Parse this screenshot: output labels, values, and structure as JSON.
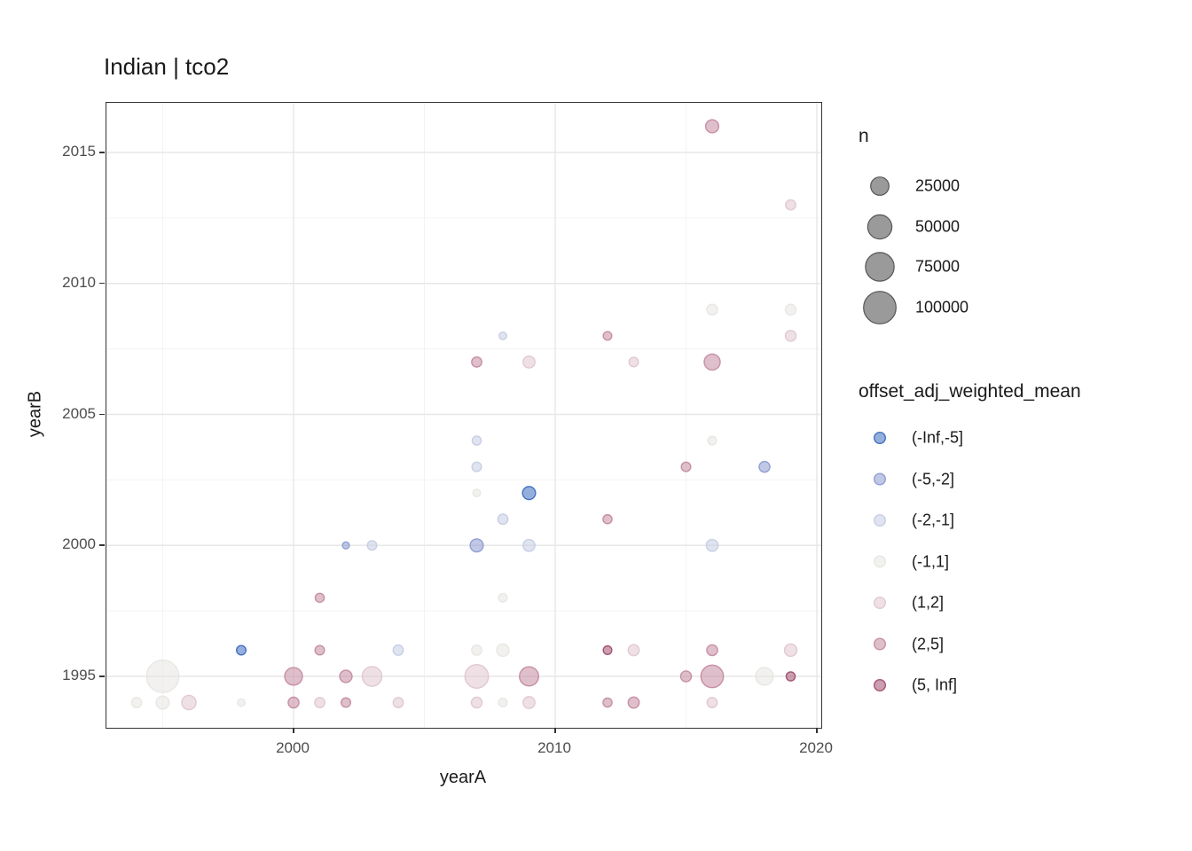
{
  "chart_data": {
    "type": "scatter",
    "title": "Indian | tco2",
    "xlabel": "yearA",
    "ylabel": "yearB",
    "x_ticks": [
      2000,
      2010,
      2020
    ],
    "x_minor": [
      1995,
      2005,
      2015
    ],
    "y_ticks": [
      1995,
      2000,
      2005,
      2010,
      2015
    ],
    "y_minor": [
      1997.5,
      2002.5,
      2007.5,
      2012.5
    ],
    "xlim": [
      1992.9,
      2020.2
    ],
    "ylim": [
      1993.0,
      2016.9
    ],
    "grid": true,
    "legend_position": "right",
    "panel_border_color": "#333333",
    "major_grid_color": "#e7e7e7",
    "minor_grid_color": "#f3f3f3",
    "size_legend": {
      "title": "n",
      "entries": [
        {
          "label": "25000",
          "n": 25000
        },
        {
          "label": "50000",
          "n": 50000
        },
        {
          "label": "75000",
          "n": 75000
        },
        {
          "label": "100000",
          "n": 100000
        }
      ],
      "swatch_fill": "#8f8f8f",
      "swatch_stroke": "#565656"
    },
    "color_legend": {
      "title": "offset_adj_weighted_mean",
      "entries": [
        {
          "label": "(-Inf,-5]",
          "color": "#3E6DBF"
        },
        {
          "label": "(-5,-2]",
          "color": "#8C9BD1"
        },
        {
          "label": "(-2,-1]",
          "color": "#C6CCE3"
        },
        {
          "label": "(-1,1]",
          "color": "#E7E6E2"
        },
        {
          "label": "(1,2]",
          "color": "#E0C7CF"
        },
        {
          "label": "(2,5]",
          "color": "#C48BA0"
        },
        {
          "label": "(5, Inf]",
          "color": "#A14E6F"
        }
      ]
    },
    "points": [
      {
        "yearA": 1994,
        "yearB": 1994,
        "n": 4500,
        "bin": "(-1,1]"
      },
      {
        "yearA": 1995,
        "yearB": 1994,
        "n": 10000,
        "bin": "(-1,1]"
      },
      {
        "yearA": 1996,
        "yearB": 1994,
        "n": 13000,
        "bin": "(1,2]"
      },
      {
        "yearA": 1998,
        "yearB": 1994,
        "n": 1500,
        "bin": "(-1,1]"
      },
      {
        "yearA": 2000,
        "yearB": 1994,
        "n": 5500,
        "bin": "(2,5]"
      },
      {
        "yearA": 2001,
        "yearB": 1994,
        "n": 4500,
        "bin": "(1,2]"
      },
      {
        "yearA": 2002,
        "yearB": 1994,
        "n": 3500,
        "bin": "(2,5]"
      },
      {
        "yearA": 2004,
        "yearB": 1994,
        "n": 4500,
        "bin": "(1,2]"
      },
      {
        "yearA": 2007,
        "yearB": 1994,
        "n": 5500,
        "bin": "(1,2]"
      },
      {
        "yearA": 2008,
        "yearB": 1994,
        "n": 2500,
        "bin": "(-1,1]"
      },
      {
        "yearA": 2009,
        "yearB": 1994,
        "n": 7500,
        "bin": "(1,2]"
      },
      {
        "yearA": 2012,
        "yearB": 1994,
        "n": 3000,
        "bin": "(2,5]"
      },
      {
        "yearA": 2013,
        "yearB": 1994,
        "n": 6000,
        "bin": "(2,5]"
      },
      {
        "yearA": 2016,
        "yearB": 1994,
        "n": 4500,
        "bin": "(1,2]"
      },
      {
        "yearA": 1995,
        "yearB": 1995,
        "n": 100000,
        "bin": "(-1,1]"
      },
      {
        "yearA": 2000,
        "yearB": 1995,
        "n": 23000,
        "bin": "(2,5]"
      },
      {
        "yearA": 2002,
        "yearB": 1995,
        "n": 8500,
        "bin": "(2,5]"
      },
      {
        "yearA": 2003,
        "yearB": 1995,
        "n": 30000,
        "bin": "(1,2]"
      },
      {
        "yearA": 2007,
        "yearB": 1995,
        "n": 47000,
        "bin": "(1,2]"
      },
      {
        "yearA": 2009,
        "yearB": 1995,
        "n": 28000,
        "bin": "(2,5]"
      },
      {
        "yearA": 2015,
        "yearB": 1995,
        "n": 5500,
        "bin": "(2,5]"
      },
      {
        "yearA": 2016,
        "yearB": 1995,
        "n": 42000,
        "bin": "(2,5]"
      },
      {
        "yearA": 2018,
        "yearB": 1995,
        "n": 23000,
        "bin": "(-1,1]"
      },
      {
        "yearA": 2019,
        "yearB": 1995,
        "n": 3000,
        "bin": "(5, Inf]"
      },
      {
        "yearA": 1998,
        "yearB": 1996,
        "n": 3500,
        "bin": "(-Inf,-5]"
      },
      {
        "yearA": 2001,
        "yearB": 1996,
        "n": 3500,
        "bin": "(2,5]"
      },
      {
        "yearA": 2004,
        "yearB": 1996,
        "n": 4500,
        "bin": "(-2,-1]"
      },
      {
        "yearA": 2007,
        "yearB": 1996,
        "n": 4500,
        "bin": "(-1,1]"
      },
      {
        "yearA": 2008,
        "yearB": 1996,
        "n": 8500,
        "bin": "(-1,1]"
      },
      {
        "yearA": 2012,
        "yearB": 1996,
        "n": 2500,
        "bin": "(5, Inf]"
      },
      {
        "yearA": 2013,
        "yearB": 1996,
        "n": 6000,
        "bin": "(1,2]"
      },
      {
        "yearA": 2016,
        "yearB": 1996,
        "n": 5500,
        "bin": "(2,5]"
      },
      {
        "yearA": 2019,
        "yearB": 1996,
        "n": 8500,
        "bin": "(1,2]"
      },
      {
        "yearA": 2001,
        "yearB": 1998,
        "n": 3000,
        "bin": "(2,5]"
      },
      {
        "yearA": 2008,
        "yearB": 1998,
        "n": 2500,
        "bin": "(-1,1]"
      },
      {
        "yearA": 2002,
        "yearB": 2000,
        "n": 1000,
        "bin": "(-5,-2]"
      },
      {
        "yearA": 2003,
        "yearB": 2000,
        "n": 3500,
        "bin": "(-2,-1]"
      },
      {
        "yearA": 2007,
        "yearB": 2000,
        "n": 10000,
        "bin": "(-5,-2]"
      },
      {
        "yearA": 2009,
        "yearB": 2000,
        "n": 7500,
        "bin": "(-2,-1]"
      },
      {
        "yearA": 2016,
        "yearB": 2000,
        "n": 7500,
        "bin": "(-2,-1]"
      },
      {
        "yearA": 2008,
        "yearB": 2001,
        "n": 4500,
        "bin": "(-2,-1]"
      },
      {
        "yearA": 2012,
        "yearB": 2001,
        "n": 3000,
        "bin": "(2,5]"
      },
      {
        "yearA": 2007,
        "yearB": 2002,
        "n": 1500,
        "bin": "(-1,1]"
      },
      {
        "yearA": 2009,
        "yearB": 2002,
        "n": 10000,
        "bin": "(-Inf,-5]"
      },
      {
        "yearA": 2007,
        "yearB": 2003,
        "n": 3500,
        "bin": "(-2,-1]"
      },
      {
        "yearA": 2015,
        "yearB": 2003,
        "n": 3500,
        "bin": "(2,5]"
      },
      {
        "yearA": 2018,
        "yearB": 2003,
        "n": 5500,
        "bin": "(-5,-2]"
      },
      {
        "yearA": 2007,
        "yearB": 2004,
        "n": 3000,
        "bin": "(-2,-1]"
      },
      {
        "yearA": 2016,
        "yearB": 2004,
        "n": 2500,
        "bin": "(-1,1]"
      },
      {
        "yearA": 2007,
        "yearB": 2007,
        "n": 4500,
        "bin": "(2,5]"
      },
      {
        "yearA": 2009,
        "yearB": 2007,
        "n": 7500,
        "bin": "(1,2]"
      },
      {
        "yearA": 2013,
        "yearB": 2007,
        "n": 3500,
        "bin": "(1,2]"
      },
      {
        "yearA": 2016,
        "yearB": 2007,
        "n": 17500,
        "bin": "(2,5]"
      },
      {
        "yearA": 2008,
        "yearB": 2008,
        "n": 1500,
        "bin": "(-2,-1]"
      },
      {
        "yearA": 2012,
        "yearB": 2008,
        "n": 2500,
        "bin": "(2,5]"
      },
      {
        "yearA": 2019,
        "yearB": 2008,
        "n": 5500,
        "bin": "(1,2]"
      },
      {
        "yearA": 2016,
        "yearB": 2009,
        "n": 5500,
        "bin": "(-1,1]"
      },
      {
        "yearA": 2019,
        "yearB": 2009,
        "n": 5500,
        "bin": "(-1,1]"
      },
      {
        "yearA": 2019,
        "yearB": 2013,
        "n": 4500,
        "bin": "(1,2]"
      },
      {
        "yearA": 2016,
        "yearB": 2016,
        "n": 10000,
        "bin": "(2,5]"
      }
    ]
  }
}
